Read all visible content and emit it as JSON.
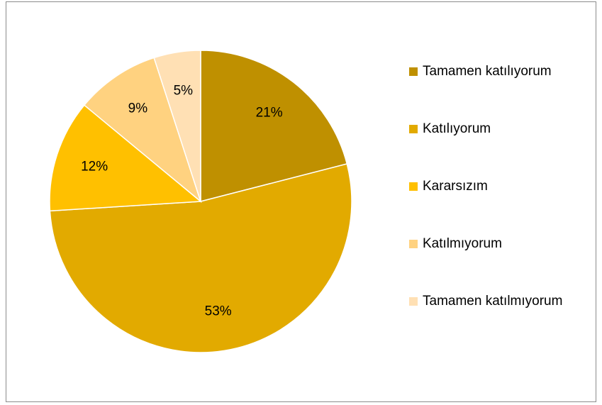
{
  "chart_data": {
    "type": "pie",
    "categories": [
      "Tamamen katılıyorum",
      "Katılıyorum",
      "Kararsızım",
      "Katılmıyorum",
      "Tamamen katılmıyorum"
    ],
    "values": [
      21,
      53,
      12,
      9,
      5
    ],
    "value_labels": [
      "21%",
      "53%",
      "12%",
      "9%",
      "5%"
    ],
    "colors": [
      "#bf9000",
      "#e2aa00",
      "#ffc000",
      "#ffd280",
      "#ffe0b4"
    ],
    "legend": "right"
  }
}
